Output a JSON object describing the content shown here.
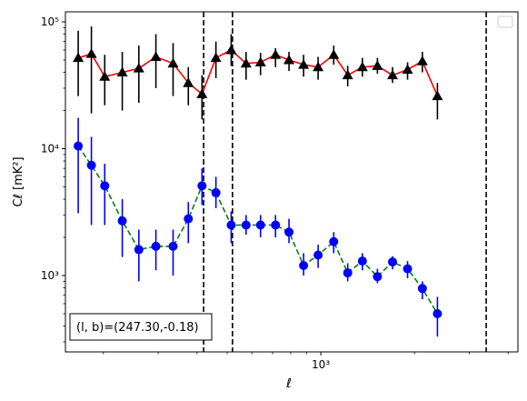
{
  "chart_data": {
    "type": "scatter",
    "x_scale": "log",
    "y_scale": "log",
    "xlim": [
      151,
      4300
    ],
    "ylim": [
      250,
      120000
    ],
    "xlabel": "ℓ",
    "ylabel": "Cℓ  [mK²]",
    "x_major_tick_labels": [
      {
        "value": 1000,
        "label": "10³"
      }
    ],
    "y_major_tick_labels": [
      {
        "value": 1000,
        "label": "10³"
      },
      {
        "value": 10000,
        "label": "10⁴"
      },
      {
        "value": 100000,
        "label": "10⁵"
      }
    ],
    "vertical_lines": [
      420,
      520,
      3400
    ],
    "annotation": "(l, b)=(247.30,-0.18)",
    "legend_placement": "upper right",
    "grid": false,
    "series": [
      {
        "marker": "triangle",
        "line_style": "solid",
        "line_color": "#ff0000",
        "marker_color": "#000000",
        "errorbar_color": "#000000",
        "points": [
          {
            "x": 166,
            "y": 52000,
            "lo": 26000,
            "hi": 85000
          },
          {
            "x": 183,
            "y": 56000,
            "lo": 19000,
            "hi": 92000
          },
          {
            "x": 202,
            "y": 37000,
            "lo": 22000,
            "hi": 55000
          },
          {
            "x": 230,
            "y": 40000,
            "lo": 20000,
            "hi": 58000
          },
          {
            "x": 260,
            "y": 43000,
            "lo": 23000,
            "hi": 65000
          },
          {
            "x": 295,
            "y": 53000,
            "lo": 30000,
            "hi": 80000
          },
          {
            "x": 335,
            "y": 47000,
            "lo": 26000,
            "hi": 68000
          },
          {
            "x": 375,
            "y": 33000,
            "lo": 22000,
            "hi": 44000
          },
          {
            "x": 415,
            "y": 27000,
            "lo": 17000,
            "hi": 38000
          },
          {
            "x": 460,
            "y": 52000,
            "lo": 36000,
            "hi": 70000
          },
          {
            "x": 515,
            "y": 60000,
            "lo": 45000,
            "hi": 80000
          },
          {
            "x": 575,
            "y": 47000,
            "lo": 35000,
            "hi": 58000
          },
          {
            "x": 640,
            "y": 48000,
            "lo": 38000,
            "hi": 57000
          },
          {
            "x": 715,
            "y": 55000,
            "lo": 44000,
            "hi": 62000
          },
          {
            "x": 790,
            "y": 50000,
            "lo": 41000,
            "hi": 58000
          },
          {
            "x": 880,
            "y": 46000,
            "lo": 37000,
            "hi": 55000
          },
          {
            "x": 980,
            "y": 44000,
            "lo": 35000,
            "hi": 53000
          },
          {
            "x": 1100,
            "y": 55000,
            "lo": 46000,
            "hi": 65000
          },
          {
            "x": 1220,
            "y": 38000,
            "lo": 31000,
            "hi": 45000
          },
          {
            "x": 1360,
            "y": 44000,
            "lo": 37000,
            "hi": 52000
          },
          {
            "x": 1520,
            "y": 45000,
            "lo": 39000,
            "hi": 52000
          },
          {
            "x": 1700,
            "y": 38000,
            "lo": 33000,
            "hi": 44000
          },
          {
            "x": 1900,
            "y": 42000,
            "lo": 35000,
            "hi": 48000
          },
          {
            "x": 2120,
            "y": 49000,
            "lo": 40000,
            "hi": 58000
          },
          {
            "x": 2370,
            "y": 26000,
            "lo": 17000,
            "hi": 33000
          }
        ]
      },
      {
        "marker": "circle",
        "line_style": "dashed",
        "line_color": "#008000",
        "marker_color": "#0000ff",
        "errorbar_color": "#0000ff",
        "points": [
          {
            "x": 166,
            "y": 10500,
            "lo": 3100,
            "hi": 17500
          },
          {
            "x": 183,
            "y": 7400,
            "lo": 2500,
            "hi": 12400
          },
          {
            "x": 202,
            "y": 5100,
            "lo": 2500,
            "hi": 7600
          },
          {
            "x": 230,
            "y": 2700,
            "lo": 1400,
            "hi": 4000
          },
          {
            "x": 260,
            "y": 1600,
            "lo": 900,
            "hi": 2300
          },
          {
            "x": 295,
            "y": 1700,
            "lo": 1100,
            "hi": 2300
          },
          {
            "x": 335,
            "y": 1700,
            "lo": 1000,
            "hi": 2300
          },
          {
            "x": 375,
            "y": 2800,
            "lo": 1800,
            "hi": 3800
          },
          {
            "x": 415,
            "y": 5100,
            "lo": 3600,
            "hi": 7000
          },
          {
            "x": 460,
            "y": 4500,
            "lo": 3400,
            "hi": 6000
          },
          {
            "x": 515,
            "y": 2500,
            "lo": 1800,
            "hi": 3200
          },
          {
            "x": 575,
            "y": 2500,
            "lo": 2100,
            "hi": 3000
          },
          {
            "x": 640,
            "y": 2500,
            "lo": 2000,
            "hi": 3000
          },
          {
            "x": 715,
            "y": 2500,
            "lo": 2000,
            "hi": 3000
          },
          {
            "x": 790,
            "y": 2200,
            "lo": 1800,
            "hi": 2800
          },
          {
            "x": 880,
            "y": 1200,
            "lo": 1000,
            "hi": 1500
          },
          {
            "x": 980,
            "y": 1450,
            "lo": 1150,
            "hi": 1750
          },
          {
            "x": 1100,
            "y": 1850,
            "lo": 1500,
            "hi": 2200
          },
          {
            "x": 1220,
            "y": 1050,
            "lo": 900,
            "hi": 1250
          },
          {
            "x": 1360,
            "y": 1300,
            "lo": 1100,
            "hi": 1500
          },
          {
            "x": 1520,
            "y": 980,
            "lo": 870,
            "hi": 1130
          },
          {
            "x": 1700,
            "y": 1280,
            "lo": 1120,
            "hi": 1420
          },
          {
            "x": 1900,
            "y": 1130,
            "lo": 950,
            "hi": 1300
          },
          {
            "x": 2120,
            "y": 790,
            "lo": 650,
            "hi": 900
          },
          {
            "x": 2370,
            "y": 500,
            "lo": 330,
            "hi": 680
          }
        ]
      }
    ]
  }
}
